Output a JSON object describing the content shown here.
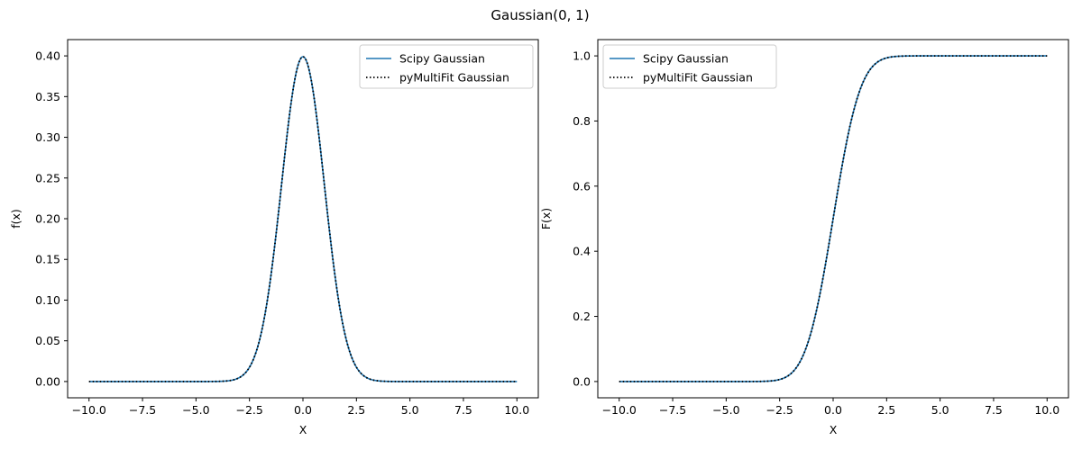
{
  "suptitle": "Gaussian(0, 1)",
  "colors": {
    "scipy_line": "#1f77b4",
    "pymultifit_line": "#000000",
    "axes": "#000000",
    "legend_border": "#cccccc"
  },
  "chart_data": [
    {
      "type": "line",
      "name": "pdf",
      "xlabel": "X",
      "ylabel": "f(x)",
      "xlim": [
        -11.0,
        11.0
      ],
      "ylim": [
        -0.02,
        0.42
      ],
      "xticks": [
        -10.0,
        -7.5,
        -5.0,
        -2.5,
        0.0,
        2.5,
        5.0,
        7.5,
        10.0
      ],
      "xtick_labels": [
        "−10.0",
        "−7.5",
        "−5.0",
        "−2.5",
        "0.0",
        "2.5",
        "5.0",
        "7.5",
        "10.0"
      ],
      "yticks": [
        0.0,
        0.05,
        0.1,
        0.15,
        0.2,
        0.25,
        0.3,
        0.35,
        0.4
      ],
      "ytick_labels": [
        "0.00",
        "0.05",
        "0.10",
        "0.15",
        "0.20",
        "0.25",
        "0.30",
        "0.35",
        "0.40"
      ],
      "legend_position": "upper right",
      "series": [
        {
          "name": "Scipy Gaussian",
          "style": "solid",
          "color": "#1f77b4",
          "x": [
            -10,
            -5,
            -4,
            -3.5,
            -3,
            -2.5,
            -2,
            -1.5,
            -1,
            -0.5,
            0,
            0.5,
            1,
            1.5,
            2,
            2.5,
            3,
            3.5,
            4,
            5,
            10
          ],
          "y": [
            0,
            0.0,
            0.0001,
            0.0009,
            0.0044,
            0.0175,
            0.054,
            0.1295,
            0.242,
            0.3521,
            0.3989,
            0.3521,
            0.242,
            0.1295,
            0.054,
            0.0175,
            0.0044,
            0.0009,
            0.0001,
            0.0,
            0
          ]
        },
        {
          "name": "pyMultiFit Gaussian",
          "style": "dotted",
          "color": "#000000",
          "x": [
            -10,
            -5,
            -4,
            -3.5,
            -3,
            -2.5,
            -2,
            -1.5,
            -1,
            -0.5,
            0,
            0.5,
            1,
            1.5,
            2,
            2.5,
            3,
            3.5,
            4,
            5,
            10
          ],
          "y": [
            0,
            0.0,
            0.0001,
            0.0009,
            0.0044,
            0.0175,
            0.054,
            0.1295,
            0.242,
            0.3521,
            0.3989,
            0.3521,
            0.242,
            0.1295,
            0.054,
            0.0175,
            0.0044,
            0.0009,
            0.0001,
            0.0,
            0
          ]
        }
      ]
    },
    {
      "type": "line",
      "name": "cdf",
      "xlabel": "X",
      "ylabel": "F(x)",
      "xlim": [
        -11.0,
        11.0
      ],
      "ylim": [
        -0.05,
        1.05
      ],
      "xticks": [
        -10.0,
        -7.5,
        -5.0,
        -2.5,
        0.0,
        2.5,
        5.0,
        7.5,
        10.0
      ],
      "xtick_labels": [
        "−10.0",
        "−7.5",
        "−5.0",
        "−2.5",
        "0.0",
        "2.5",
        "5.0",
        "7.5",
        "10.0"
      ],
      "yticks": [
        0.0,
        0.2,
        0.4,
        0.6,
        0.8,
        1.0
      ],
      "ytick_labels": [
        "0.0",
        "0.2",
        "0.4",
        "0.6",
        "0.8",
        "1.0"
      ],
      "legend_position": "upper left",
      "series": [
        {
          "name": "Scipy Gaussian",
          "style": "solid",
          "color": "#1f77b4",
          "x": [
            -10,
            -5,
            -4,
            -3.5,
            -3,
            -2.5,
            -2,
            -1.5,
            -1,
            -0.5,
            0,
            0.5,
            1,
            1.5,
            2,
            2.5,
            3,
            3.5,
            4,
            5,
            10
          ],
          "y": [
            0,
            0.0,
            0.0,
            0.0002,
            0.0013,
            0.0062,
            0.0228,
            0.0668,
            0.1587,
            0.3085,
            0.5,
            0.6915,
            0.8413,
            0.9332,
            0.9772,
            0.9938,
            0.9987,
            0.9998,
            1.0,
            1.0,
            1.0
          ]
        },
        {
          "name": "pyMultiFit Gaussian",
          "style": "dotted",
          "color": "#000000",
          "x": [
            -10,
            -5,
            -4,
            -3.5,
            -3,
            -2.5,
            -2,
            -1.5,
            -1,
            -0.5,
            0,
            0.5,
            1,
            1.5,
            2,
            2.5,
            3,
            3.5,
            4,
            5,
            10
          ],
          "y": [
            0,
            0.0,
            0.0,
            0.0002,
            0.0013,
            0.0062,
            0.0228,
            0.0668,
            0.1587,
            0.3085,
            0.5,
            0.6915,
            0.8413,
            0.9332,
            0.9772,
            0.9938,
            0.9987,
            0.9998,
            1.0,
            1.0,
            1.0
          ]
        }
      ]
    }
  ]
}
